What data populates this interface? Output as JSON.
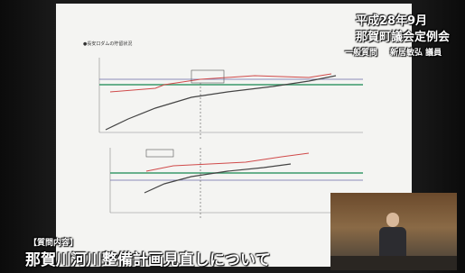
{
  "overlay": {
    "session": "平成28年9月",
    "assembly": "那賀町議会定例会",
    "speaker_role": "一般質問",
    "speaker": "新居敏弘 議員"
  },
  "caption": {
    "label": "【質問内容】",
    "topic": "那賀川河川整備計画見直しについて"
  },
  "slide": {
    "chart_title": "●長安口ダムの貯留状況"
  }
}
